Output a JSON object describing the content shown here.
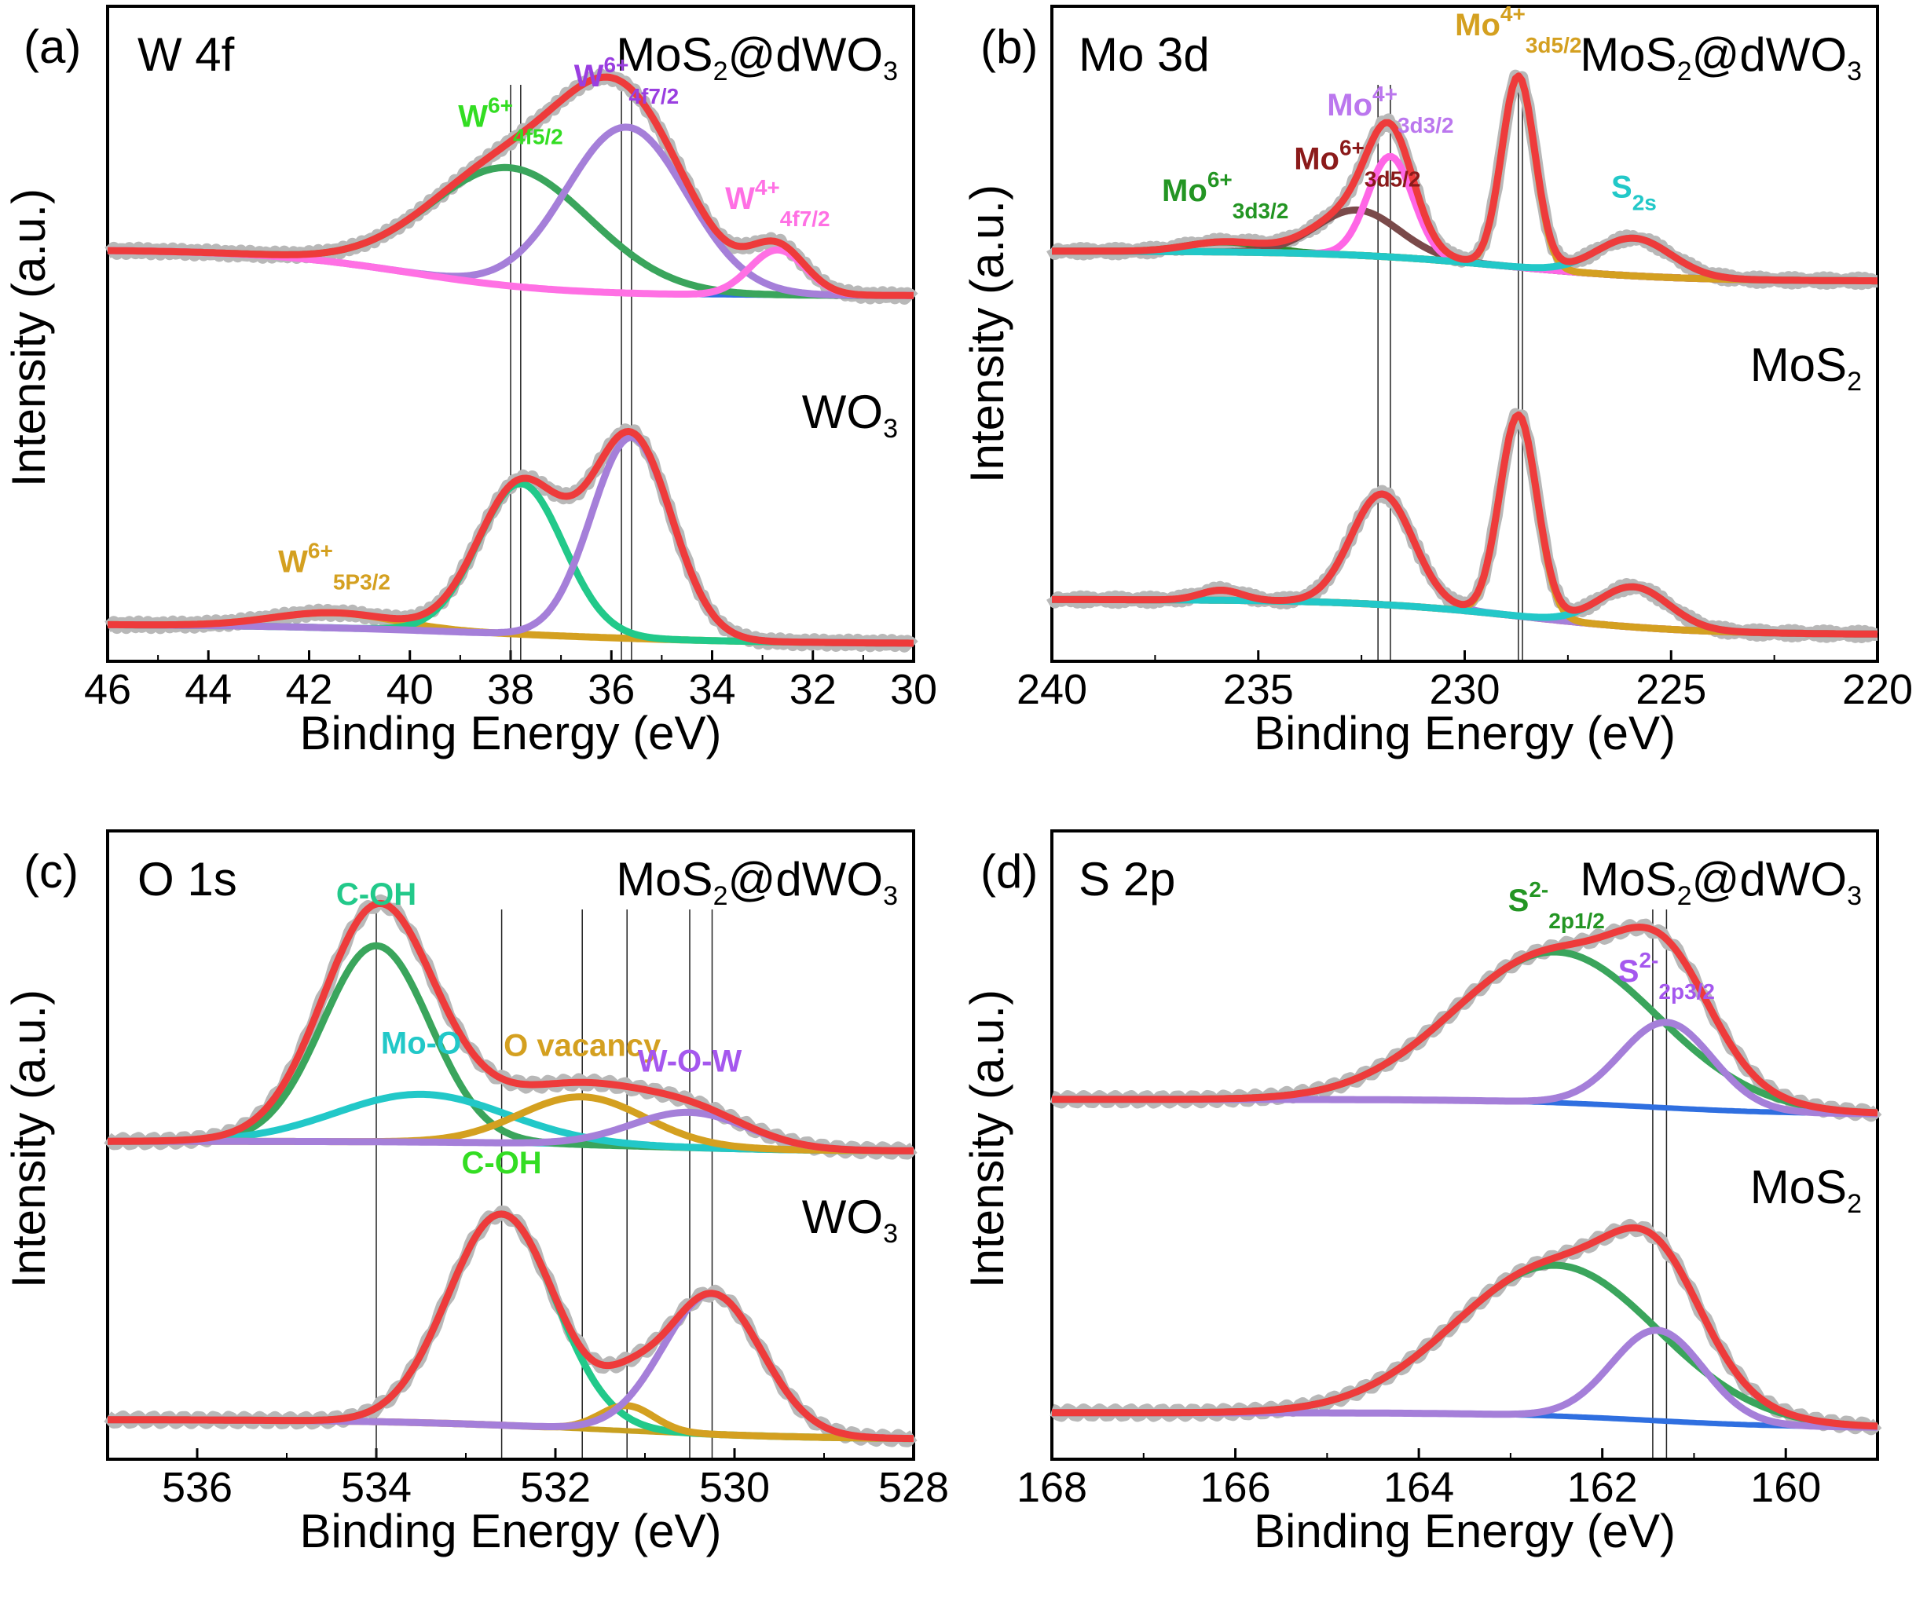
{
  "chart_data": [
    {
      "type": "line",
      "panel_label": "(a)",
      "title": "W 4f",
      "xlabel": "Binding Energy (eV)",
      "ylabel": "Intensity (a.u.)",
      "xlim": [
        46,
        30
      ],
      "xticks": [
        46,
        44,
        42,
        40,
        38,
        36,
        34,
        32,
        30
      ],
      "ylim": [
        0,
        1
      ],
      "samples": [
        {
          "name": "MoS2@dWO3",
          "label_main": "MoS",
          "label_sub1": "2",
          "label_mid": "@dWO",
          "label_sub2": "3",
          "offset": 0.5,
          "baseline_start": 0.075,
          "baseline_end": -0.016,
          "baseline_mid": 40,
          "baseline_width": 1.5,
          "peaks": [
            {
              "name": "W6+ 4f5/2",
              "center": 38.0,
              "height": 0.235,
              "width": 1.6,
              "color": "#3aa55c",
              "label_main": "W",
              "label_sup": "6+",
              "label_sub": "4f5/2",
              "label_color": "#33dd22"
            },
            {
              "name": "W6+ 4f7/2",
              "center": 35.7,
              "height": 0.33,
              "width": 1.2,
              "color": "#a57fd9",
              "label_main": "W",
              "label_sup": "6+",
              "label_sub": "4f7/2",
              "label_color": "#9a3ee0"
            },
            {
              "name": "W4+ 4f7/2",
              "center": 32.7,
              "height": 0.09,
              "width": 0.55,
              "color": "#ff70e4",
              "label_main": "W",
              "label_sup": "4+",
              "label_sub": "4f7/2",
              "label_color": "#ff70e4"
            }
          ],
          "envelope_color": "#ee3b3b",
          "baseline_color": "#2f6fe0"
        },
        {
          "name": "WO3",
          "label_main": "WO",
          "label_sub1": "3",
          "label_mid": "",
          "label_sub2": "",
          "offset": 0.0,
          "baseline_start": 0.04,
          "baseline_end": 0.0,
          "baseline_mid": 38,
          "baseline_width": 2.5,
          "peaks": [
            {
              "name": "W6+ 5P3/2",
              "center": 41.5,
              "height": 0.03,
              "width": 1.2,
              "color": "#d4a020",
              "label_main": "W",
              "label_sup": "6+",
              "label_sub": "5P3/2",
              "label_color": "#d4a020"
            },
            {
              "name": "W6+ 4f5/2",
              "center": 37.8,
              "height": 0.3,
              "width": 0.85,
              "color": "#22c98a",
              "label_main": "",
              "label_sup": "",
              "label_sub": "",
              "label_color": ""
            },
            {
              "name": "W6+ 4f7/2",
              "center": 35.6,
              "height": 0.4,
              "width": 0.8,
              "color": "#a57fd9",
              "label_main": "",
              "label_sup": "",
              "label_sub": "",
              "label_color": ""
            }
          ],
          "envelope_color": "#ee3b3b",
          "baseline_color": "#c8a020"
        }
      ],
      "reference_lines": [
        38.0,
        35.8,
        37.8,
        35.6
      ]
    },
    {
      "type": "line",
      "panel_label": "(b)",
      "title": "Mo 3d",
      "xlabel": "Binding Energy (eV)",
      "ylabel": "Intensity (a.u.)",
      "xlim": [
        240,
        220
      ],
      "xticks": [
        240,
        235,
        230,
        225,
        220
      ],
      "ylim": [
        0,
        1
      ],
      "samples": [
        {
          "name": "MoS2@dWO3",
          "label_main": "MoS",
          "label_sub1": "2",
          "label_mid": "@dWO",
          "label_sub2": "3",
          "offset": 0.5,
          "baseline_start": 0.06,
          "baseline_end": 0.0,
          "baseline_mid": 229,
          "baseline_width": 2.0,
          "peaks": [
            {
              "name": "Mo6+ 3d3/2",
              "center": 235.8,
              "height": 0.02,
              "width": 0.9,
              "color": "#2b8a2b",
              "label_main": "Mo",
              "label_sup": "6+",
              "label_sub": "3d3/2",
              "label_color": "#239523"
            },
            {
              "name": "Mo6+ 3d5/2",
              "center": 232.6,
              "height": 0.09,
              "width": 1.0,
              "color": "#7a4a4a",
              "label_main": "Mo",
              "label_sup": "6+",
              "label_sub": "3d5/2",
              "label_color": "#8b1a1a"
            },
            {
              "name": "Mo4+ 3d3/2",
              "center": 231.8,
              "height": 0.2,
              "width": 0.55,
              "color": "#ff66e6",
              "label_main": "Mo",
              "label_sup": "4+",
              "label_sub": "3d3/2",
              "label_color": "#bb77ee"
            },
            {
              "name": "Mo4+ 3d5/2",
              "center": 228.7,
              "height": 0.38,
              "width": 0.4,
              "color": "#d4a020",
              "label_main": "Mo",
              "label_sup": "4+",
              "label_sub": "3d5/2",
              "label_color": "#d4a020"
            },
            {
              "name": "S2s",
              "center": 225.9,
              "height": 0.075,
              "width": 0.9,
              "color": "#22c8c8",
              "label_main": "S",
              "label_sup": "",
              "label_sub": "2s",
              "label_color": "#22c8c8"
            }
          ],
          "envelope_color": "#ee3b3b",
          "baseline_color": "#22c8c8"
        },
        {
          "name": "MoS2",
          "label_main": "MoS",
          "label_sub1": "2",
          "label_mid": "",
          "label_sub2": "",
          "offset": 0.0,
          "baseline_start": 0.07,
          "baseline_end": 0.0,
          "baseline_mid": 228.5,
          "baseline_width": 2.0,
          "peaks": [
            {
              "name": "Mo6+ 3d3/2",
              "center": 235.9,
              "height": 0.02,
              "width": 0.5,
              "color": "#ee3b3b",
              "label_main": "",
              "label_sup": "",
              "label_sub": "",
              "label_color": ""
            },
            {
              "name": "Mo4+ 3d3/2",
              "center": 232.0,
              "height": 0.22,
              "width": 0.75,
              "color": "#a57fd9",
              "label_main": "",
              "label_sup": "",
              "label_sub": "",
              "label_color": ""
            },
            {
              "name": "Mo4+ 3d5/2",
              "center": 228.7,
              "height": 0.4,
              "width": 0.45,
              "color": "#d4a020",
              "label_main": "",
              "label_sup": "",
              "label_sub": "",
              "label_color": ""
            },
            {
              "name": "S2s",
              "center": 225.9,
              "height": 0.08,
              "width": 0.85,
              "color": "#22c8c8",
              "label_main": "",
              "label_sup": "",
              "label_sub": "",
              "label_color": ""
            }
          ],
          "envelope_color": "#ee3b3b",
          "baseline_color": "#22c8c8"
        }
      ],
      "reference_lines": [
        231.8,
        228.7,
        232.1,
        228.6
      ]
    },
    {
      "type": "line",
      "panel_label": "(c)",
      "title": "O 1s",
      "xlabel": "Binding Energy (eV)",
      "ylabel": "Intensity (a.u.)",
      "xlim": [
        537,
        528
      ],
      "xticks": [
        536,
        534,
        532,
        530,
        528
      ],
      "ylim": [
        0,
        1
      ],
      "samples": [
        {
          "name": "MoS2@dWO3",
          "label_main": "MoS",
          "label_sub1": "2",
          "label_mid": "@dWO",
          "label_sub2": "3",
          "offset": 0.5,
          "baseline_start": 0.02,
          "baseline_end": 0.0,
          "baseline_mid": 531,
          "baseline_width": 1.0,
          "peaks": [
            {
              "name": "C-OH",
              "center": 534.0,
              "height": 0.39,
              "width": 0.6,
              "color": "#3aa55c",
              "label_main": "C-OH",
              "label_sup": "",
              "label_sub": "",
              "label_color": "#22c98a"
            },
            {
              "name": "Mo-O",
              "center": 533.5,
              "height": 0.095,
              "width": 0.95,
              "color": "#22c8c8",
              "label_main": "Mo-O",
              "label_sup": "",
              "label_sub": "",
              "label_color": "#22c8c8"
            },
            {
              "name": "O vacancy",
              "center": 531.7,
              "height": 0.095,
              "width": 0.7,
              "color": "#d4a020",
              "label_main": "O vacancy",
              "label_sup": "",
              "label_sub": "",
              "label_color": "#d4a020"
            },
            {
              "name": "W-O-W",
              "center": 530.5,
              "height": 0.07,
              "width": 0.65,
              "color": "#a57fd9",
              "label_main": "W-O-W",
              "label_sup": "",
              "label_sub": "",
              "label_color": "#a557ee"
            }
          ],
          "envelope_color": "#ee3b3b",
          "baseline_color": "#22c8c8"
        },
        {
          "name": "WO3",
          "label_main": "WO",
          "label_sub1": "3",
          "label_mid": "",
          "label_sub2": "",
          "offset": 0.0,
          "baseline_start": 0.04,
          "baseline_end": 0.0,
          "baseline_mid": 531.5,
          "baseline_width": 1.2,
          "peaks": [
            {
              "name": "C-OH",
              "center": 532.6,
              "height": 0.42,
              "width": 0.6,
              "color": "#22c98a",
              "label_main": "C-OH",
              "label_sup": "",
              "label_sub": "",
              "label_color": "#33dd22"
            },
            {
              "name": "O vacancy",
              "center": 531.2,
              "height": 0.05,
              "width": 0.3,
              "color": "#d4a020",
              "label_main": "",
              "label_sup": "",
              "label_sub": "",
              "label_color": ""
            },
            {
              "name": "W-O-W",
              "center": 530.25,
              "height": 0.28,
              "width": 0.55,
              "color": "#a57fd9",
              "label_main": "",
              "label_sup": "",
              "label_sub": "",
              "label_color": ""
            }
          ],
          "envelope_color": "#ee3b3b",
          "baseline_color": "#c8a020"
        }
      ],
      "reference_lines": [
        534.0,
        531.7,
        530.5,
        532.6,
        531.2,
        530.25
      ]
    },
    {
      "type": "line",
      "panel_label": "(d)",
      "title": "S 2p",
      "xlabel": "Binding Energy (eV)",
      "ylabel": "Intensity (a.u.)",
      "xlim": [
        168,
        159
      ],
      "xticks": [
        168,
        166,
        164,
        162,
        160
      ],
      "ylim": [
        0,
        1
      ],
      "samples": [
        {
          "name": "MoS2@dWO3",
          "label_main": "MoS",
          "label_sub1": "2",
          "label_mid": "@dWO",
          "label_sub2": "3",
          "offset": 0.5,
          "baseline_start": 0.03,
          "baseline_end": 0.0,
          "baseline_mid": 161.5,
          "baseline_width": 0.8,
          "peaks": [
            {
              "name": "S2- 2p1/2",
              "center": 162.5,
              "height": 0.3,
              "width": 1.1,
              "color": "#3aa55c",
              "label_main": "S",
              "label_sup": "2-",
              "label_sub": "2p1/2",
              "label_color": "#239523"
            },
            {
              "name": "S2- 2p3/2",
              "center": 161.3,
              "height": 0.17,
              "width": 0.5,
              "color": "#a57fd9",
              "label_main": "S",
              "label_sup": "2-",
              "label_sub": "2p3/2",
              "label_color": "#a557ee"
            }
          ],
          "envelope_color": "#ee3b3b",
          "baseline_color": "#2f6fe0"
        },
        {
          "name": "MoS2",
          "label_main": "MoS",
          "label_sub1": "2",
          "label_mid": "",
          "label_sub2": "",
          "offset": 0.0,
          "baseline_start": 0.03,
          "baseline_end": 0.0,
          "baseline_mid": 161.5,
          "baseline_width": 0.8,
          "peaks": [
            {
              "name": "S2- 2p1/2",
              "center": 162.5,
              "height": 0.3,
              "width": 1.1,
              "color": "#3aa55c",
              "label_main": "",
              "label_sup": "",
              "label_sub": "",
              "label_color": ""
            },
            {
              "name": "S2- 2p3/2",
              "center": 161.4,
              "height": 0.18,
              "width": 0.5,
              "color": "#a57fd9",
              "label_main": "",
              "label_sup": "",
              "label_sub": "",
              "label_color": ""
            }
          ],
          "envelope_color": "#ee3b3b",
          "baseline_color": "#2f6fe0"
        }
      ],
      "reference_lines": [
        161.3,
        161.45
      ]
    }
  ]
}
